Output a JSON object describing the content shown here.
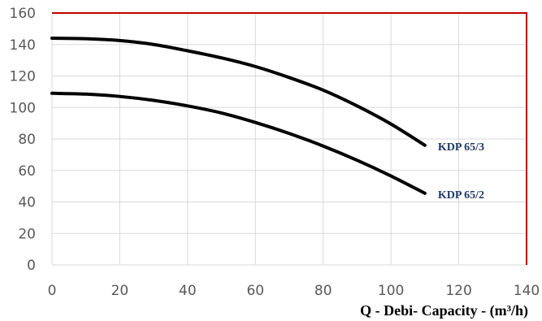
{
  "chart_data": {
    "type": "line",
    "title": "",
    "xlabel": "Q - Debi- Capacity - (m³/h)",
    "ylabel": "",
    "xlim": [
      0,
      140
    ],
    "ylim": [
      0,
      160
    ],
    "x_ticks": [
      "0",
      "20",
      "40",
      "60",
      "80",
      "100",
      "120",
      "140"
    ],
    "y_ticks": [
      "0",
      "20",
      "40",
      "60",
      "80",
      "100",
      "120",
      "140",
      "160"
    ],
    "grid": true,
    "legend": "none",
    "series": [
      {
        "name": "KDP 65/3",
        "x": [
          0,
          10,
          20,
          30,
          40,
          50,
          60,
          70,
          80,
          90,
          100,
          110
        ],
        "y": [
          144,
          143.7,
          142.5,
          140,
          136,
          131.5,
          126,
          119,
          111,
          101,
          89.5,
          76
        ]
      },
      {
        "name": "KDP 65/2",
        "x": [
          0,
          10,
          20,
          30,
          40,
          50,
          60,
          70,
          80,
          90,
          100,
          110
        ],
        "y": [
          109,
          108.5,
          107,
          104.5,
          101,
          96.5,
          90.5,
          83.5,
          75.5,
          66.5,
          56.5,
          45.5
        ]
      }
    ]
  },
  "colors": {
    "grid": "#d9d9d9",
    "border": "#c00000",
    "curve": "#000000",
    "series_label": "#1f3864",
    "tick": "#595959"
  }
}
